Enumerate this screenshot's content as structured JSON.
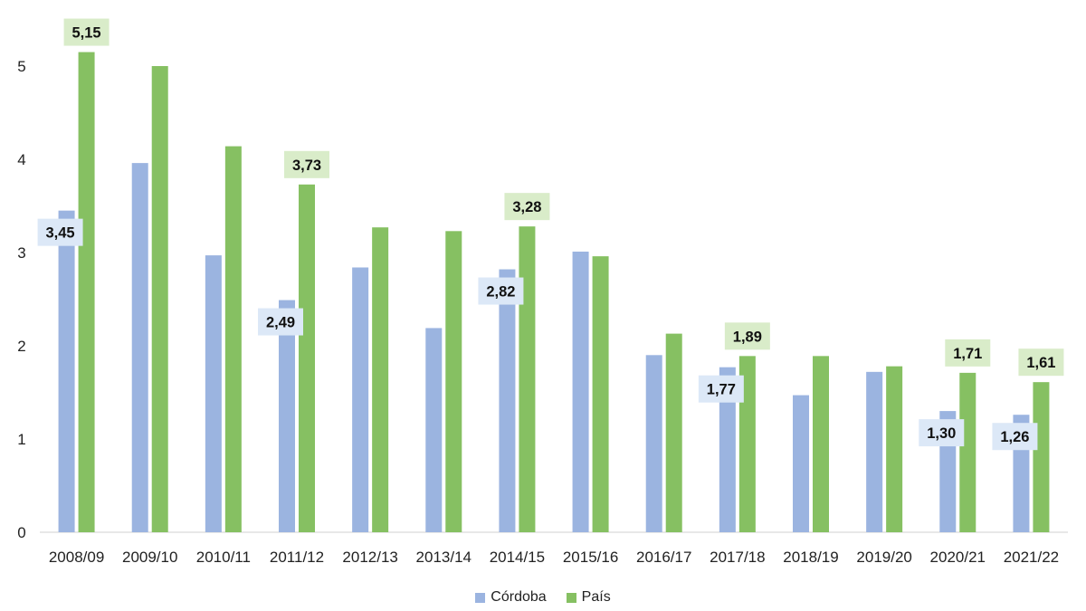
{
  "chart_data": {
    "type": "bar",
    "categories": [
      "2008/09",
      "2009/10",
      "2010/11",
      "2011/12",
      "2012/13",
      "2013/14",
      "2014/15",
      "2015/16",
      "2016/17",
      "2017/18",
      "2018/19",
      "2019/20",
      "2020/21",
      "2021/22"
    ],
    "series": [
      {
        "name": "Córdoba",
        "color": "#9bb4e0",
        "values": [
          3.45,
          3.96,
          2.97,
          2.49,
          2.84,
          2.19,
          2.82,
          3.01,
          1.9,
          1.77,
          1.47,
          1.72,
          1.3,
          1.26
        ],
        "labels": [
          "3,45",
          null,
          null,
          "2,49",
          null,
          null,
          "2,82",
          null,
          null,
          "1,77",
          null,
          null,
          "1,30",
          "1,26"
        ]
      },
      {
        "name": "País",
        "color": "#86c062",
        "values": [
          5.15,
          5.0,
          4.14,
          3.73,
          3.27,
          3.23,
          3.28,
          2.96,
          2.13,
          1.89,
          1.89,
          1.78,
          1.71,
          1.61
        ],
        "labels": [
          "5,15",
          null,
          null,
          "3,73",
          null,
          null,
          "3,28",
          null,
          null,
          "1,89",
          null,
          null,
          "1,71",
          "1,61"
        ]
      }
    ],
    "ylim": [
      0,
      5
    ],
    "yticks": [
      "0",
      "1",
      "2",
      "3",
      "4",
      "5"
    ],
    "label_bg": {
      "Córdoba": "#dce8f7",
      "País": "#d9ecc9"
    },
    "legend_position": "bottom",
    "grid": false,
    "xlabel": "",
    "ylabel": "",
    "title": ""
  }
}
